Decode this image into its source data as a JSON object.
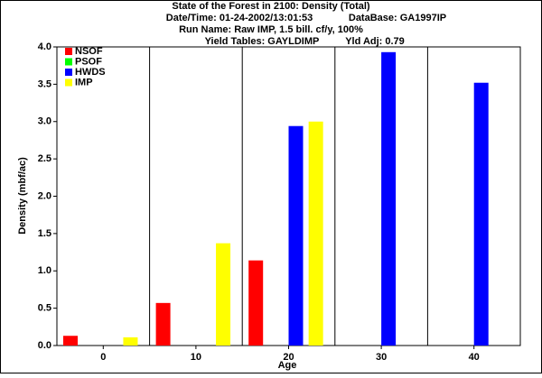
{
  "chart_data": {
    "type": "bar",
    "title": "State of the Forest in 2100: Density (Total)",
    "subtitles": [
      [
        "Date/Time: 01-24-2002/13:01:53",
        "DataBase: GA1997IP"
      ],
      [
        "Run Name: Raw IMP, 1.5 bill. cf/y, 100%"
      ],
      [
        "Yield Tables: GAYLDIMP",
        "Yld Adj: 0.79"
      ]
    ],
    "xlabel": "Age",
    "ylabel": "Density (mbf/ac)",
    "categories": [
      "0",
      "10",
      "20",
      "30",
      "40"
    ],
    "series": [
      {
        "name": "NSOF",
        "color": "#ff0000",
        "values": [
          0.13,
          0.57,
          1.14,
          null,
          null
        ]
      },
      {
        "name": "PSOF",
        "color": "#00ff00",
        "values": [
          null,
          null,
          null,
          null,
          null
        ]
      },
      {
        "name": "HWDS",
        "color": "#0000ff",
        "values": [
          null,
          null,
          2.94,
          3.93,
          3.52
        ]
      },
      {
        "name": "IMP",
        "color": "#ffff00",
        "values": [
          0.11,
          1.37,
          3.0,
          null,
          null
        ]
      }
    ],
    "ylim": [
      0,
      4
    ],
    "yticks": [
      {
        "value": 0,
        "label": "0.0"
      },
      0.5,
      {
        "value": 1,
        "label": "1.0"
      },
      1.5,
      {
        "value": 2,
        "label": "2.0"
      },
      2.5,
      {
        "value": 3,
        "label": "3.0"
      },
      3.5,
      {
        "value": 4,
        "label": "4.0"
      }
    ],
    "legend": "upper left"
  }
}
